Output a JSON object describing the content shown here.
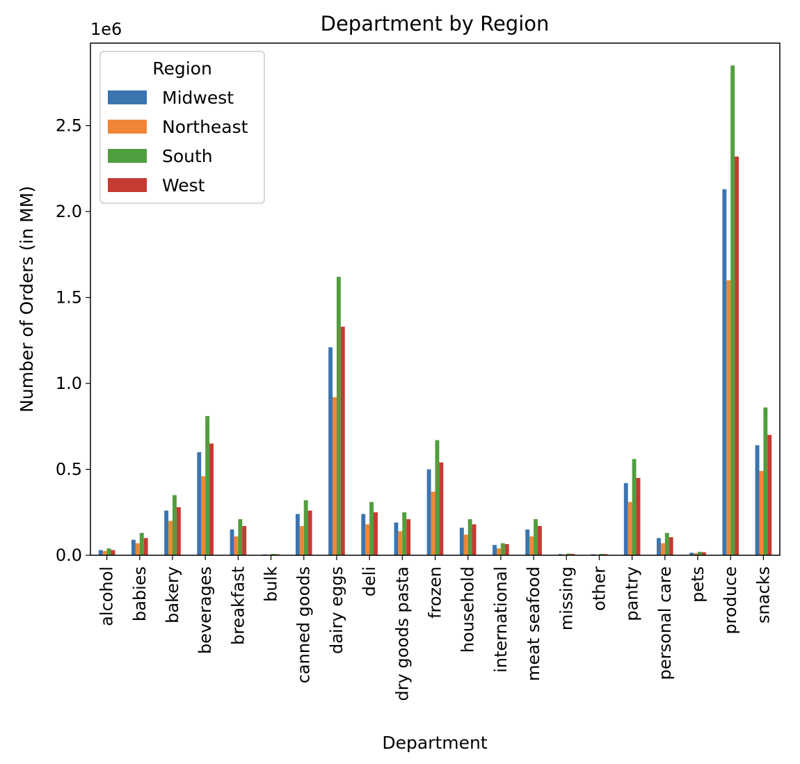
{
  "chart_data": {
    "type": "bar",
    "title": "Department by Region",
    "xlabel": "Department",
    "ylabel": "Number of Orders (in MM)",
    "y_offset_label": "1e6",
    "ylim": [
      0,
      2.98
    ],
    "yticks": [
      "0.0",
      "0.5",
      "1.0",
      "1.5",
      "2.0",
      "2.5"
    ],
    "ytick_values": [
      0,
      0.5,
      1.0,
      1.5,
      2.0,
      2.5
    ],
    "grid": false,
    "legend": {
      "title": "Region",
      "placement": "top-left"
    },
    "categories": [
      "alcohol",
      "babies",
      "bakery",
      "beverages",
      "breakfast",
      "bulk",
      "canned goods",
      "dairy eggs",
      "deli",
      "dry goods pasta",
      "frozen",
      "household",
      "international",
      "meat seafood",
      "missing",
      "other",
      "pantry",
      "personal care",
      "pets",
      "produce",
      "snacks"
    ],
    "series": [
      {
        "name": "Midwest",
        "color": "#3a75b0",
        "values": [
          0.03,
          0.09,
          0.26,
          0.6,
          0.15,
          0.005,
          0.24,
          1.21,
          0.24,
          0.19,
          0.5,
          0.16,
          0.06,
          0.15,
          0.007,
          0.006,
          0.42,
          0.1,
          0.015,
          2.13,
          0.64
        ]
      },
      {
        "name": "Northeast",
        "color": "#ef8636",
        "values": [
          0.025,
          0.07,
          0.2,
          0.46,
          0.11,
          0.004,
          0.17,
          0.92,
          0.18,
          0.14,
          0.37,
          0.12,
          0.04,
          0.11,
          0.005,
          0.004,
          0.31,
          0.07,
          0.012,
          1.6,
          0.49
        ]
      },
      {
        "name": "South",
        "color": "#519e3e",
        "values": [
          0.04,
          0.13,
          0.35,
          0.81,
          0.21,
          0.008,
          0.32,
          1.62,
          0.31,
          0.25,
          0.67,
          0.21,
          0.07,
          0.21,
          0.01,
          0.008,
          0.56,
          0.13,
          0.02,
          2.85,
          0.86
        ]
      },
      {
        "name": "West",
        "color": "#c53a32",
        "values": [
          0.03,
          0.1,
          0.28,
          0.65,
          0.17,
          0.006,
          0.26,
          1.33,
          0.25,
          0.21,
          0.54,
          0.18,
          0.065,
          0.17,
          0.008,
          0.007,
          0.45,
          0.105,
          0.018,
          2.32,
          0.7
        ]
      }
    ]
  }
}
